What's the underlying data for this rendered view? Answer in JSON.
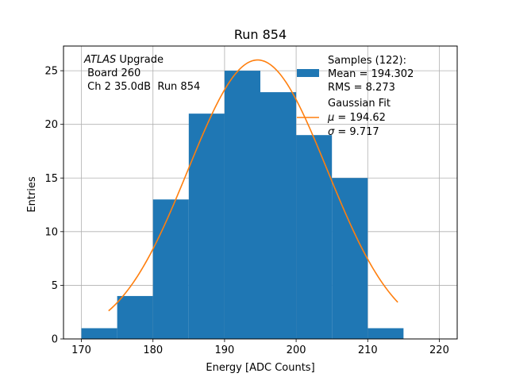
{
  "chart_data": {
    "type": "bar",
    "title": "Run 854",
    "xlabel": "Energy [ADC Counts]",
    "ylabel": "Entries",
    "xlim": [
      167.5,
      222.5
    ],
    "ylim": [
      0,
      27.3
    ],
    "grid": true,
    "x_ticks": [
      170,
      180,
      190,
      200,
      210,
      220
    ],
    "y_ticks": [
      0,
      5,
      10,
      15,
      20,
      25
    ],
    "bins": [
      {
        "x0": 170,
        "x1": 175,
        "count": 1
      },
      {
        "x0": 175,
        "x1": 180,
        "count": 4
      },
      {
        "x0": 180,
        "x1": 185,
        "count": 13
      },
      {
        "x0": 185,
        "x1": 190,
        "count": 21
      },
      {
        "x0": 190,
        "x1": 195,
        "count": 25
      },
      {
        "x0": 195,
        "x1": 200,
        "count": 23
      },
      {
        "x0": 200,
        "x1": 205,
        "count": 19
      },
      {
        "x0": 205,
        "x1": 210,
        "count": 15
      },
      {
        "x0": 210,
        "x1": 215,
        "count": 1
      }
    ],
    "fit": {
      "type": "gaussian",
      "mu": 194.62,
      "sigma": 9.717,
      "amplitude": 26.0,
      "x_range": [
        173.8,
        214.2
      ]
    },
    "colors": {
      "bars": "#1f77b4",
      "fit": "#ff7f0e",
      "grid": "#b0b0b0"
    },
    "annotation": {
      "line1_italic": "ATLAS",
      "line1_rest": " Upgrade",
      "line2": " Board 260",
      "line3": " Ch 2 35.0dB  Run 854"
    },
    "legend": {
      "position": "top-right",
      "samples_lines": [
        "Samples (122):",
        "Mean = 194.302",
        "RMS = 8.273"
      ],
      "fit_line1": "Gaussian Fit",
      "mu_symbol": "μ",
      "mu_text": " = 194.62",
      "sigma_symbol": "σ",
      "sigma_text": " = 9.717"
    }
  }
}
